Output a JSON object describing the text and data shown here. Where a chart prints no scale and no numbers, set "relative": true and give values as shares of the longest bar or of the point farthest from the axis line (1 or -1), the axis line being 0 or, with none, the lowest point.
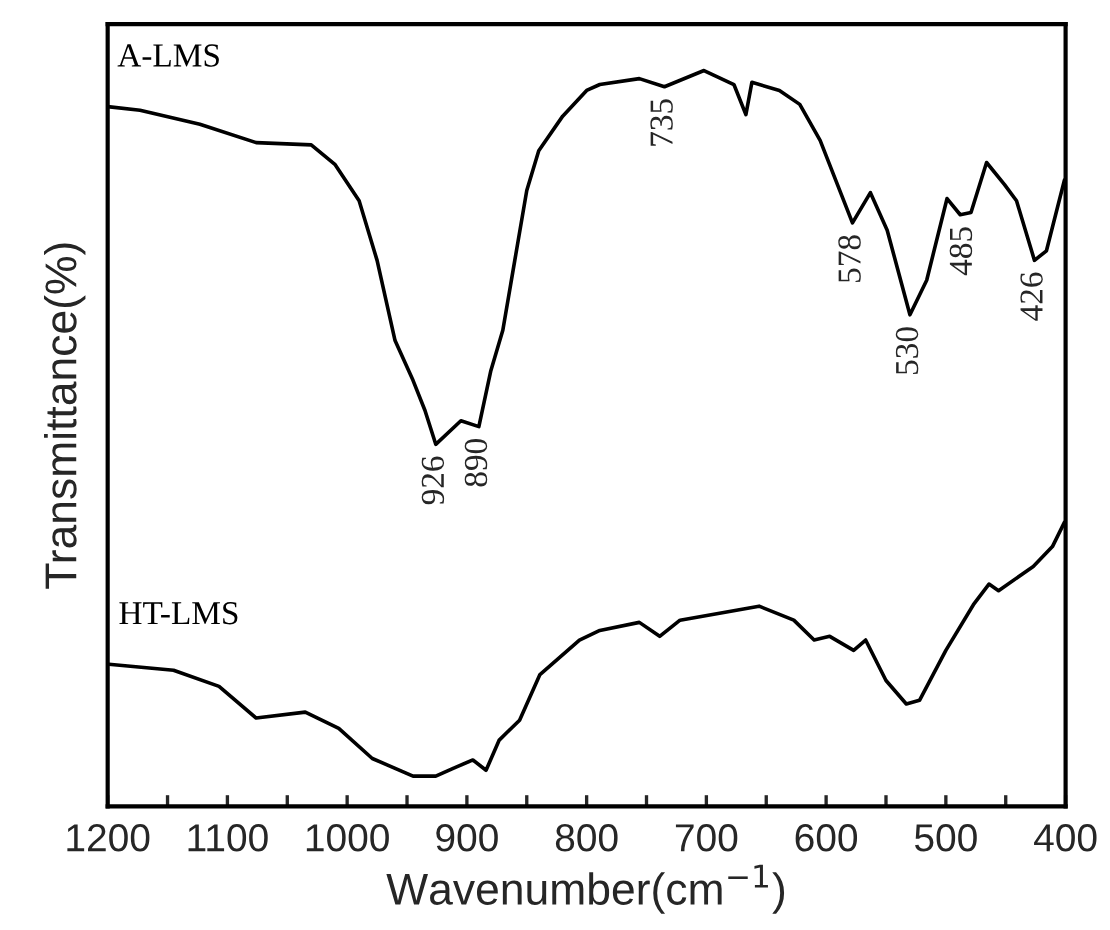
{
  "chart_data": {
    "type": "line",
    "relative": true,
    "xlabel": "Wavenumber(cm$^{−1}$)",
    "ylabel": "Transmittance(%)",
    "xlim": [
      1200,
      400
    ],
    "xticks": [
      1200,
      {
        "value": 1150,
        "label": null
      },
      1100,
      {
        "value": 1050,
        "label": null
      },
      1000,
      {
        "value": 950,
        "label": null
      },
      900,
      {
        "value": 850,
        "label": null
      },
      800,
      {
        "value": 750,
        "label": null
      },
      700,
      {
        "value": 650,
        "label": null
      },
      600,
      {
        "value": 550,
        "label": null
      },
      500,
      {
        "value": 450,
        "label": null
      },
      400
    ],
    "tick_labels": "x",
    "grid": false,
    "legend": false,
    "line_style": "solid",
    "marker": "none",
    "series": [
      {
        "name": "A-LMS",
        "color": "#000000",
        "x": [
          1200,
          1173,
          1123,
          1076,
          1030,
          1010,
          990,
          975,
          960,
          945,
          935,
          926,
          905,
          890,
          880,
          870,
          860,
          850,
          840,
          820,
          800,
          789,
          756,
          735,
          702,
          677,
          667,
          662,
          639,
          622,
          605,
          592,
          578,
          563,
          549,
          530,
          516,
          499,
          488,
          479,
          466,
          451,
          441,
          426,
          416,
          401
        ],
        "values": [
          0.951,
          0.946,
          0.927,
          0.902,
          0.899,
          0.872,
          0.823,
          0.742,
          0.633,
          0.579,
          0.538,
          0.492,
          0.524,
          0.516,
          0.592,
          0.647,
          0.742,
          0.837,
          0.891,
          0.938,
          0.973,
          0.981,
          0.989,
          0.978,
          1,
          0.981,
          0.94,
          0.984,
          0.973,
          0.954,
          0.905,
          0.851,
          0.793,
          0.834,
          0.783,
          0.668,
          0.715,
          0.826,
          0.804,
          0.807,
          0.875,
          0.845,
          0.823,
          0.742,
          0.755,
          0.851
        ]
      },
      {
        "name": "HT-LMS",
        "color": "#000000",
        "x": [
          1199,
          1145,
          1107,
          1076,
          1035,
          1007,
          979,
          945,
          926,
          911,
          895,
          884,
          873,
          856,
          839,
          806,
          789,
          756,
          739,
          722,
          656,
          627,
          610,
          597,
          577,
          567,
          550,
          533,
          522,
          500,
          477,
          464,
          456,
          427,
          411,
          401
        ],
        "values": [
          0.193,
          0.185,
          0.163,
          0.12,
          0.128,
          0.106,
          0.065,
          0.041,
          0.041,
          0.052,
          0.063,
          0.049,
          0.09,
          0.117,
          0.179,
          0.226,
          0.239,
          0.25,
          0.231,
          0.253,
          0.272,
          0.253,
          0.226,
          0.231,
          0.212,
          0.226,
          0.171,
          0.139,
          0.144,
          0.212,
          0.274,
          0.302,
          0.293,
          0.326,
          0.353,
          0.386
        ]
      }
    ],
    "annotations": [
      {
        "text": "926",
        "x": 926,
        "y": 0.492
      },
      {
        "text": "890",
        "x": 890,
        "y": 0.516
      },
      {
        "text": "735",
        "x": 735,
        "y": 0.978
      },
      {
        "text": "578",
        "x": 578,
        "y": 0.793
      },
      {
        "text": "530",
        "x": 530,
        "y": 0.668
      },
      {
        "text": "485",
        "x": 485,
        "y": 0.804
      },
      {
        "text": "426",
        "x": 426,
        "y": 0.742
      }
    ]
  }
}
